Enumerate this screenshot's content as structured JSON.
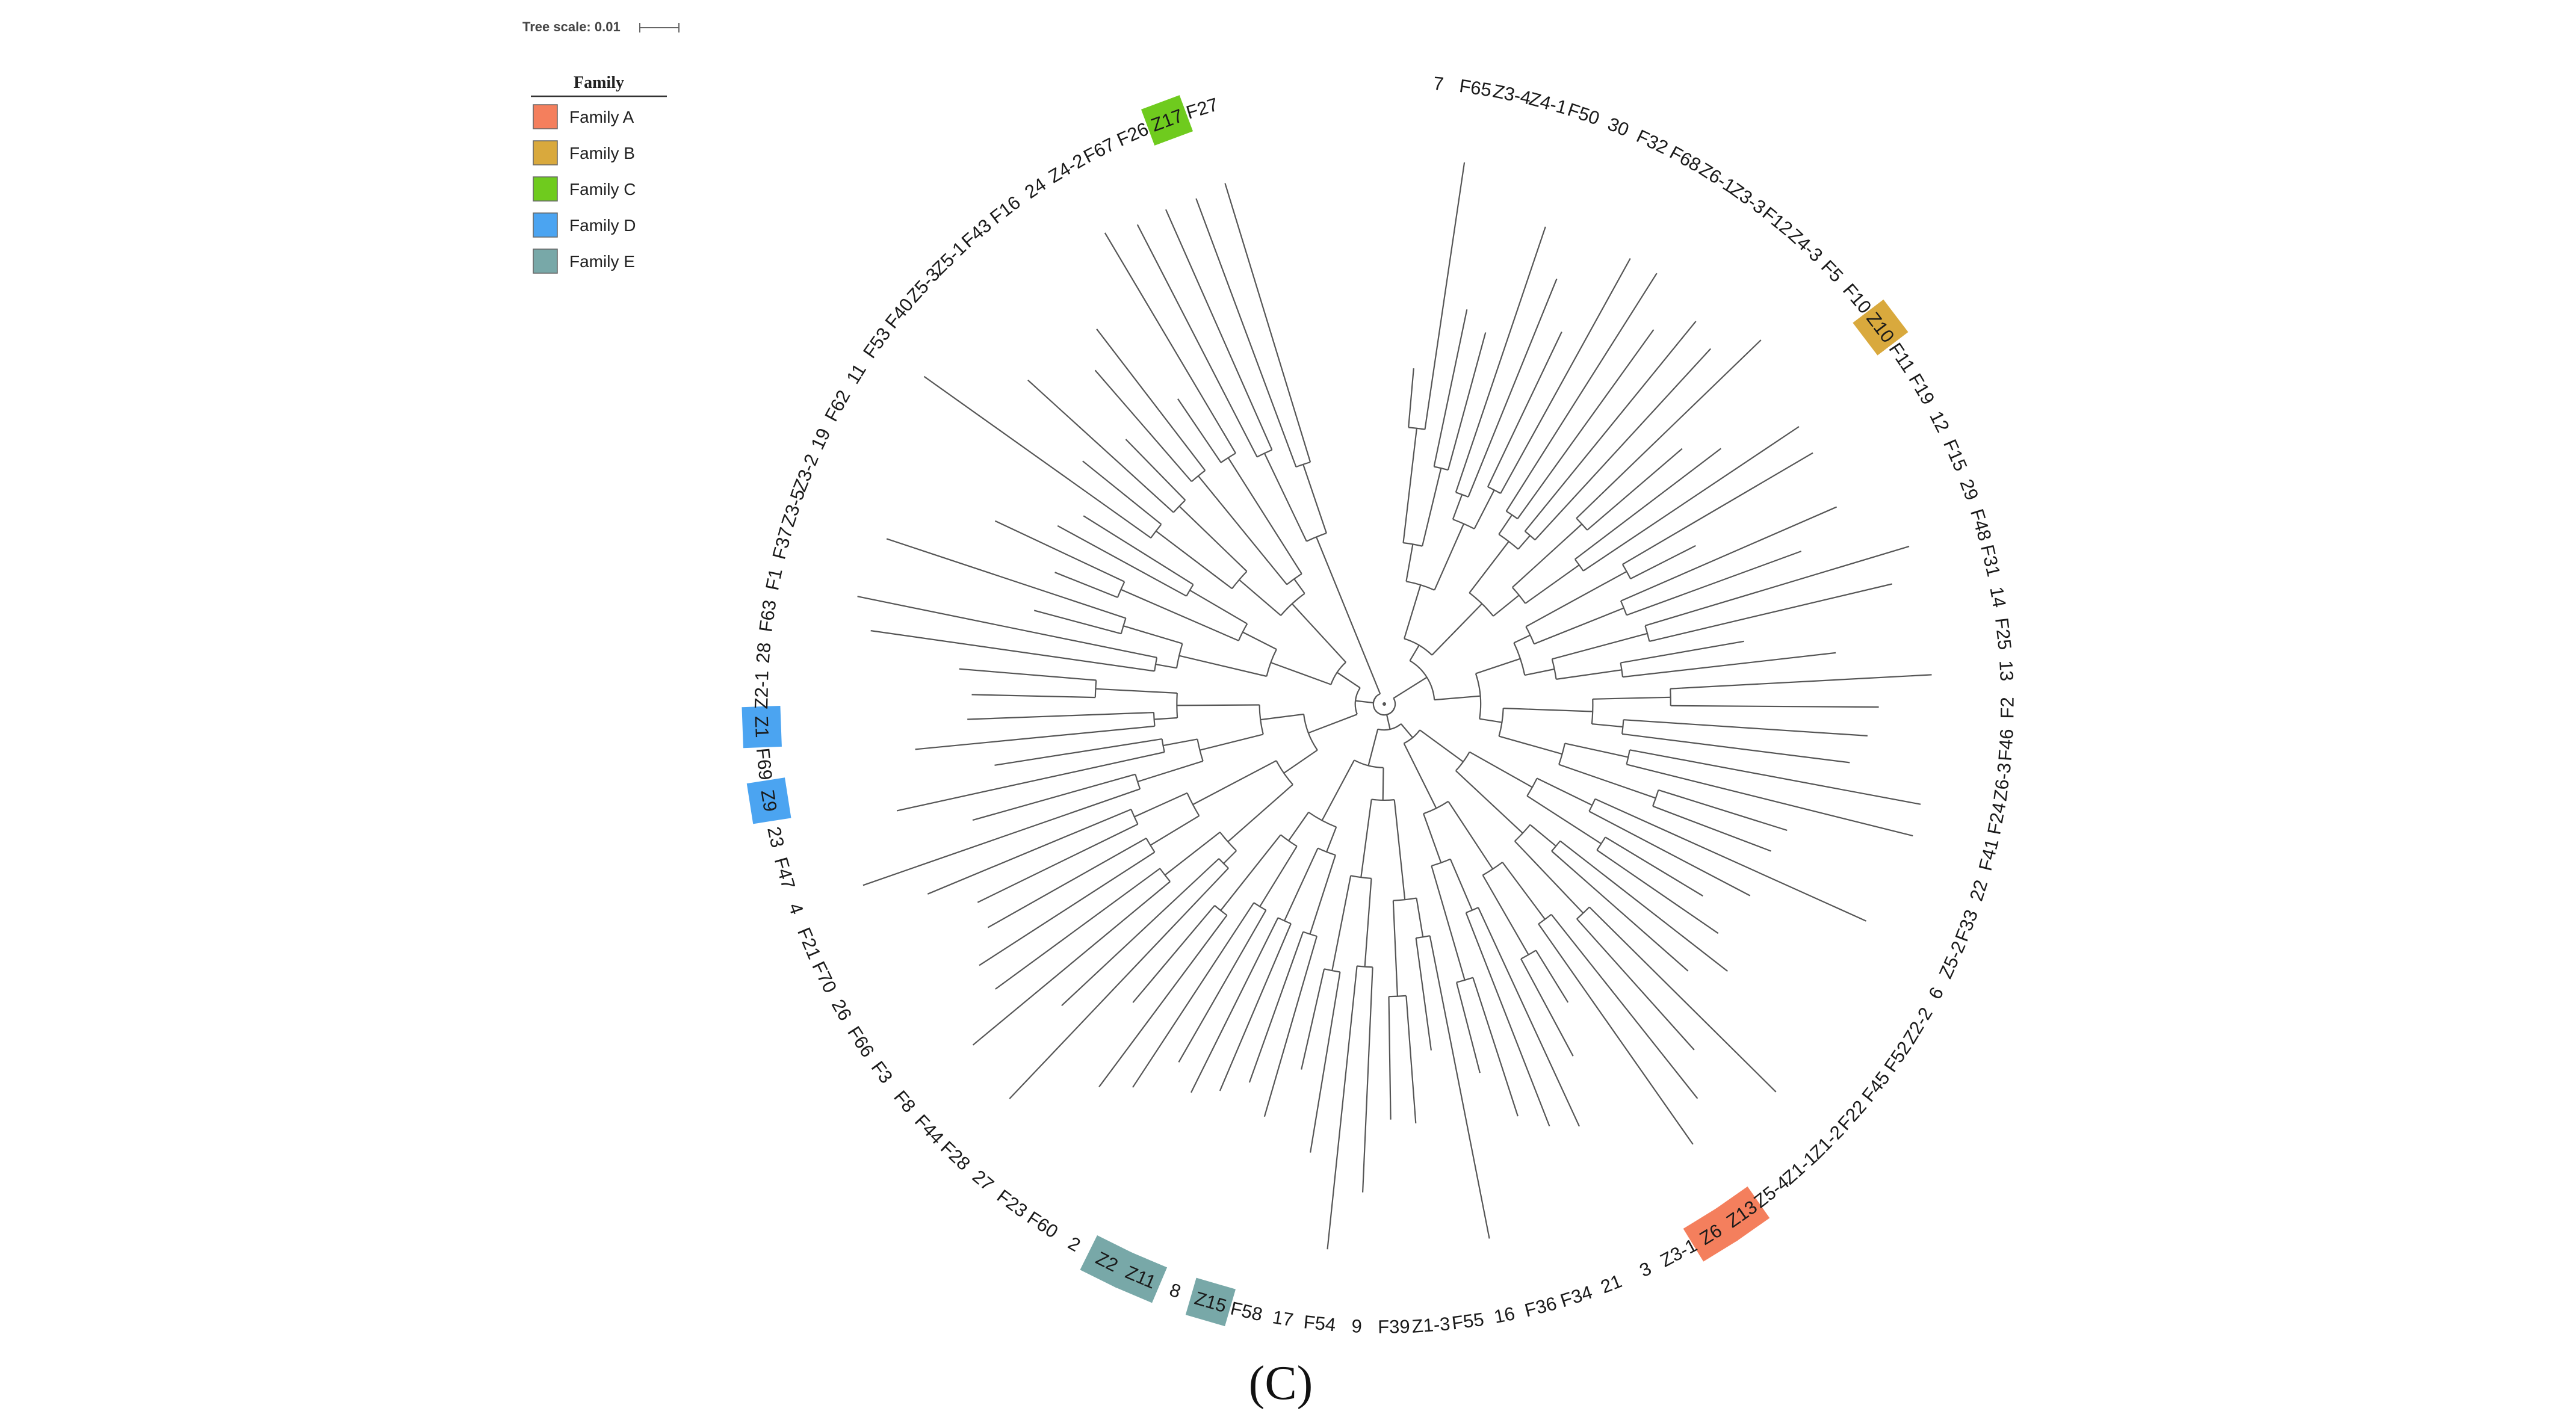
{
  "scale": {
    "label": "Tree scale: 0.01"
  },
  "legend": {
    "title": "Family",
    "items": [
      {
        "key": "A",
        "label": "Family A",
        "color": "#f47f5d"
      },
      {
        "key": "B",
        "label": "Family B",
        "color": "#d9a93d"
      },
      {
        "key": "C",
        "label": "Family C",
        "color": "#6fcb1e"
      },
      {
        "key": "D",
        "label": "Family D",
        "color": "#4ba4f1"
      },
      {
        "key": "E",
        "label": "Family E",
        "color": "#78a8a8"
      }
    ]
  },
  "panel_label": "(C)",
  "leaves": [
    {
      "name": "7"
    },
    {
      "name": "F65"
    },
    {
      "name": "Z3-4"
    },
    {
      "name": "Z4-1"
    },
    {
      "name": "F50"
    },
    {
      "name": "30"
    },
    {
      "name": "F32"
    },
    {
      "name": "F68"
    },
    {
      "name": "Z6-1"
    },
    {
      "name": "Z3-3"
    },
    {
      "name": "F12"
    },
    {
      "name": "Z4-3"
    },
    {
      "name": "F5"
    },
    {
      "name": "F10"
    },
    {
      "name": "Z10",
      "family": "B"
    },
    {
      "name": "F11"
    },
    {
      "name": "F19"
    },
    {
      "name": "12"
    },
    {
      "name": "F15"
    },
    {
      "name": "29"
    },
    {
      "name": "F48"
    },
    {
      "name": "F31"
    },
    {
      "name": "14"
    },
    {
      "name": "F25"
    },
    {
      "name": "13"
    },
    {
      "name": "F2"
    },
    {
      "name": "F46"
    },
    {
      "name": "Z6-3"
    },
    {
      "name": "F24"
    },
    {
      "name": "F41"
    },
    {
      "name": "22"
    },
    {
      "name": "F33"
    },
    {
      "name": "Z5-2"
    },
    {
      "name": "6"
    },
    {
      "name": "Z2-2"
    },
    {
      "name": "F52"
    },
    {
      "name": "F45"
    },
    {
      "name": "F22"
    },
    {
      "name": "Z1-2"
    },
    {
      "name": "Z1-1"
    },
    {
      "name": "Z5-4"
    },
    {
      "name": "Z13",
      "family": "A"
    },
    {
      "name": "Z6",
      "family": "A"
    },
    {
      "name": "Z3-1"
    },
    {
      "name": "3"
    },
    {
      "name": "21"
    },
    {
      "name": "F34"
    },
    {
      "name": "F36"
    },
    {
      "name": "16"
    },
    {
      "name": "F55"
    },
    {
      "name": "Z1-3"
    },
    {
      "name": "F39"
    },
    {
      "name": "9"
    },
    {
      "name": "F54"
    },
    {
      "name": "17"
    },
    {
      "name": "F58"
    },
    {
      "name": "Z15",
      "family": "E"
    },
    {
      "name": "8"
    },
    {
      "name": "Z11",
      "family": "E"
    },
    {
      "name": "Z2",
      "family": "E"
    },
    {
      "name": "2"
    },
    {
      "name": "F60"
    },
    {
      "name": "F23"
    },
    {
      "name": "27"
    },
    {
      "name": "F28"
    },
    {
      "name": "F44"
    },
    {
      "name": "F8"
    },
    {
      "name": "F3"
    },
    {
      "name": "F66"
    },
    {
      "name": "26"
    },
    {
      "name": "F70"
    },
    {
      "name": "F21"
    },
    {
      "name": "4"
    },
    {
      "name": "F47"
    },
    {
      "name": "23"
    },
    {
      "name": "Z9",
      "family": "D"
    },
    {
      "name": "F69"
    },
    {
      "name": "Z1",
      "family": "D"
    },
    {
      "name": "Z2-1"
    },
    {
      "name": "28"
    },
    {
      "name": "F63"
    },
    {
      "name": "F1"
    },
    {
      "name": "F37"
    },
    {
      "name": "Z3-5"
    },
    {
      "name": "Z3-2"
    },
    {
      "name": "19"
    },
    {
      "name": "F62"
    },
    {
      "name": "11"
    },
    {
      "name": "F53"
    },
    {
      "name": "F40"
    },
    {
      "name": "Z5-3"
    },
    {
      "name": "Z5-1"
    },
    {
      "name": "F43"
    },
    {
      "name": "F16"
    },
    {
      "name": "24"
    },
    {
      "name": "Z4-2"
    },
    {
      "name": "F67"
    },
    {
      "name": "F26"
    },
    {
      "name": "Z17",
      "family": "C"
    },
    {
      "name": "F27"
    }
  ]
}
